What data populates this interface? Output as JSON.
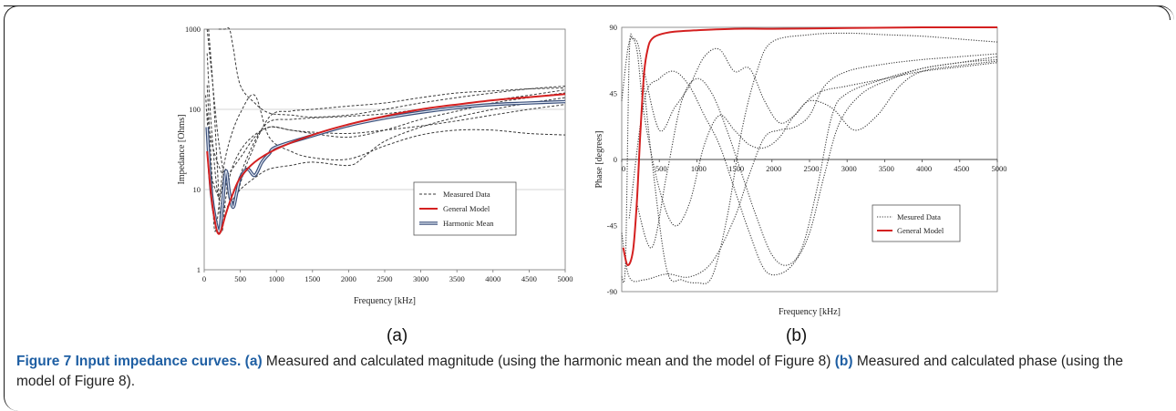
{
  "panel_labels": [
    "(a)",
    "(b)"
  ],
  "caption": {
    "figure_title": "Figure 7 Input impedance curves.",
    "part_a_label": "(a)",
    "part_a_text": "Measured and calculated magnitude (using the harmonic mean and the model of Figure 8)",
    "part_b_label": "(b)",
    "part_b_text": "Measured and calculated phase (using the model of Figure 8)."
  },
  "colors": {
    "measured": "#3a3a3a",
    "general_model": "#d42020",
    "harmonic_mean": "#3a4f7a",
    "caption_accent": "#1f5fa3"
  },
  "chart_data": [
    {
      "type": "line",
      "panel": "(a)",
      "xlabel": "Frequency  [kHz]",
      "ylabel": "Impedance [Ohms]",
      "xlim": [
        0,
        5000
      ],
      "ylim": [
        1,
        1000
      ],
      "yscale": "log",
      "xticks": [
        "0",
        "500",
        "1000",
        "1500",
        "2000",
        "2500",
        "3000",
        "3500",
        "4000",
        "4500",
        "5000"
      ],
      "yticks": [
        "1",
        "10",
        "100",
        "1000"
      ],
      "grid": "horizontal",
      "legend_position": "center-right",
      "legend": [
        "Measured Data",
        "General Model",
        "Harmonic Mean"
      ],
      "series": [
        {
          "name": "General Model",
          "style": "solid-red",
          "x": [
            40,
            100,
            160,
            200,
            240,
            300,
            400,
            500,
            700,
            1000,
            1500,
            2000,
            2500,
            3000,
            3500,
            4000,
            4500,
            5000
          ],
          "y": [
            30,
            8,
            3.5,
            2.8,
            3.2,
            5,
            9,
            14,
            22,
            32,
            48,
            65,
            82,
            100,
            115,
            130,
            142,
            155
          ]
        },
        {
          "name": "Harmonic Mean",
          "style": "double-blue",
          "x": [
            40,
            100,
            200,
            250,
            300,
            350,
            400,
            450,
            500,
            600,
            700,
            800,
            900,
            1000,
            1500,
            2000,
            2500,
            3000,
            3500,
            4000,
            4500,
            5000
          ],
          "y": [
            60,
            9,
            3,
            6,
            17,
            9,
            6,
            9,
            14,
            18,
            15,
            22,
            28,
            34,
            47,
            63,
            78,
            92,
            105,
            115,
            120,
            125
          ]
        },
        {
          "name": "Measured Data",
          "style": "dashed",
          "x": [
            40,
            100,
            200,
            300,
            400,
            600,
            900,
            1200,
            1500,
            2000,
            2500,
            3000,
            3500,
            4000,
            4500,
            5000
          ],
          "y": [
            500,
            60,
            8,
            18,
            7,
            22,
            80,
            95,
            100,
            110,
            120,
            140,
            160,
            170,
            180,
            185
          ]
        },
        {
          "name": "",
          "style": "dashed",
          "x": [
            40,
            100,
            200,
            300,
            400,
            500,
            700,
            900,
            1200,
            1500,
            2000,
            2500,
            3000,
            3500,
            4000,
            4500,
            5000
          ],
          "y": [
            1000,
            300,
            40,
            12,
            6,
            15,
            40,
            70,
            75,
            78,
            82,
            88,
            100,
            115,
            130,
            150,
            175
          ]
        },
        {
          "name": "",
          "style": "dashed",
          "x": [
            60,
            120,
            180,
            240,
            300,
            400,
            600,
            900,
            1200,
            1500,
            2000,
            2500,
            3000,
            3500,
            4000,
            4500,
            5000
          ],
          "y": [
            1000,
            200,
            20,
            3,
            8,
            20,
            40,
            60,
            55,
            52,
            50,
            55,
            62,
            72,
            85,
            100,
            115
          ]
        },
        {
          "name": "",
          "style": "dashed",
          "x": [
            40,
            100,
            150,
            250,
            350,
            500,
            700,
            900,
            1200,
            1500,
            2000,
            2500,
            3000,
            3500,
            4000,
            4500,
            5000
          ],
          "y": [
            200,
            20,
            3,
            15,
            40,
            90,
            150,
            45,
            30,
            25,
            24,
            35,
            48,
            55,
            55,
            50,
            48
          ]
        },
        {
          "name": "",
          "style": "dashed",
          "x": [
            40,
            100,
            200,
            300,
            500,
            700,
            900,
            1200,
            1500,
            2000,
            2500,
            3000,
            3500,
            4000,
            4500,
            5000
          ],
          "y": [
            90,
            40,
            20,
            15,
            25,
            45,
            60,
            55,
            50,
            45,
            55,
            75,
            95,
            120,
            140,
            160
          ]
        },
        {
          "name": "",
          "style": "dashed",
          "x": [
            200,
            280,
            350,
            400,
            500,
            700,
            900,
            1200,
            1500,
            2000,
            2500,
            3000,
            3500,
            4000,
            4500,
            5000
          ],
          "y": [
            1000,
            1000,
            1000,
            600,
            200,
            120,
            90,
            85,
            80,
            85,
            100,
            120,
            140,
            160,
            180,
            195
          ]
        },
        {
          "name": "",
          "style": "dashed",
          "x": [
            20,
            60,
            100,
            200,
            300,
            500,
            700,
            900,
            1200,
            1500,
            2000,
            2200,
            2500,
            3000,
            3500,
            4000,
            4500,
            5000
          ],
          "y": [
            150,
            40,
            15,
            8,
            6,
            10,
            14,
            18,
            20,
            22,
            20,
            25,
            40,
            60,
            80,
            100,
            120,
            140
          ]
        }
      ]
    },
    {
      "type": "line",
      "panel": "(b)",
      "xlabel": "Frequency  [kHz]",
      "ylabel": "Phase [degrees]",
      "xlim": [
        0,
        5000
      ],
      "ylim": [
        -90,
        90
      ],
      "xticks": [
        "0",
        "500",
        "1000",
        "1500",
        "2000",
        "2500",
        "3000",
        "3500",
        "4000",
        "4500",
        "5000"
      ],
      "yticks": [
        "-90",
        "-45",
        "0",
        "45",
        "90"
      ],
      "grid": "none",
      "legend_position": "lower-right",
      "legend": [
        "Mesured Data",
        "General Model"
      ],
      "series": [
        {
          "name": "General Model",
          "style": "solid-red",
          "x": [
            20,
            80,
            150,
            200,
            250,
            300,
            350,
            400,
            500,
            700,
            1000,
            1500,
            2000,
            3000,
            4000,
            5000
          ],
          "y": [
            -60,
            -72,
            -62,
            -30,
            20,
            60,
            76,
            82,
            85,
            87,
            88,
            89,
            89,
            89.5,
            90,
            90
          ]
        },
        {
          "name": "Mesured Data",
          "style": "dotted",
          "x": [
            0,
            50,
            100,
            150,
            250,
            400,
            600,
            800,
            1000,
            1200,
            1400,
            1600,
            1800,
            2000,
            2500,
            3000,
            3500,
            4000,
            4500,
            5000
          ],
          "y": [
            -80,
            -70,
            70,
            82,
            70,
            0,
            -75,
            -82,
            -84,
            -80,
            -40,
            20,
            60,
            80,
            85,
            86,
            85,
            84,
            82,
            80
          ]
        },
        {
          "name": "",
          "style": "dotted",
          "x": [
            0,
            100,
            200,
            300,
            500,
            700,
            900,
            1100,
            1300,
            1500,
            1700,
            1900,
            2100,
            2300,
            2600,
            3000,
            3500,
            4000,
            4500,
            5000
          ],
          "y": [
            40,
            80,
            75,
            30,
            -20,
            -45,
            -30,
            10,
            30,
            20,
            10,
            8,
            15,
            30,
            45,
            50,
            55,
            60,
            63,
            66
          ]
        },
        {
          "name": "",
          "style": "dotted",
          "x": [
            200,
            400,
            600,
            800,
            1000,
            1200,
            1400,
            1600,
            1800,
            2000,
            2200,
            2400,
            2600,
            2800,
            3000,
            3500,
            4000,
            4500,
            5000
          ],
          "y": [
            -30,
            -60,
            -10,
            40,
            55,
            45,
            20,
            -10,
            -40,
            -65,
            -72,
            -60,
            -20,
            30,
            45,
            55,
            62,
            66,
            68
          ]
        },
        {
          "name": "",
          "style": "dotted",
          "x": [
            300,
            500,
            700,
            900,
            1100,
            1300,
            1500,
            1700,
            1900,
            2100,
            2300,
            2500,
            2800,
            3100,
            3400,
            3700,
            4000,
            4500,
            5000
          ],
          "y": [
            60,
            20,
            35,
            50,
            70,
            75,
            60,
            62,
            40,
            25,
            30,
            40,
            35,
            20,
            30,
            50,
            60,
            64,
            67
          ]
        },
        {
          "name": "",
          "style": "dotted",
          "x": [
            100,
            300,
            500,
            700,
            900,
            1100,
            1300,
            1500,
            1700,
            1900,
            2100,
            2300,
            2500,
            2700,
            2900,
            3200,
            3600,
            4000,
            4500,
            5000
          ],
          "y": [
            -40,
            40,
            55,
            60,
            50,
            30,
            10,
            -20,
            -50,
            -75,
            -78,
            -70,
            -50,
            -10,
            25,
            45,
            55,
            62,
            66,
            70
          ]
        },
        {
          "name": "",
          "style": "dotted",
          "x": [
            0,
            100,
            300,
            600,
            900,
            1200,
            1500,
            1700,
            1900,
            2100,
            2300,
            2500,
            2700,
            3000,
            3500,
            4000,
            4500,
            5000
          ],
          "y": [
            -50,
            -80,
            -82,
            -78,
            -80,
            -70,
            -40,
            -10,
            15,
            20,
            22,
            30,
            50,
            60,
            65,
            68,
            70,
            72
          ]
        }
      ]
    }
  ]
}
